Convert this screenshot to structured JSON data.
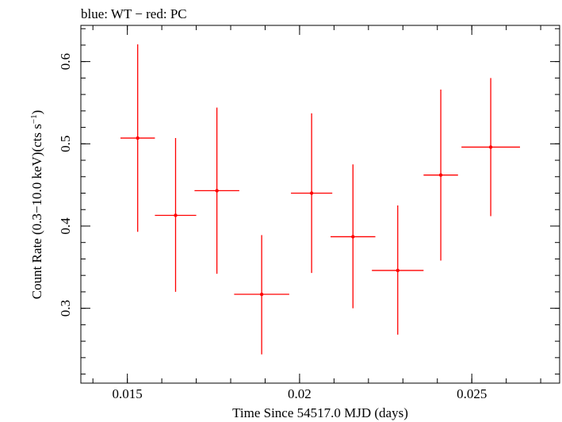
{
  "chart_data": {
    "type": "scatter",
    "title": "blue: WT − red: PC",
    "xlabel": "Time Since 54517.0 MJD (days)",
    "ylabel_main": "Count Rate (0.3−10.0 keV)(cts s",
    "ylabel_sup": "−1",
    "ylabel_end": ")",
    "xlim": [
      0.01365,
      0.02755
    ],
    "ylim": [
      0.209,
      0.644
    ],
    "xticks_major": [
      0.015,
      0.02,
      0.025
    ],
    "xtick_labels": [
      "0.015",
      "0.02",
      "0.025"
    ],
    "xticks_minor_step": 0.001,
    "yticks_major": [
      0.3,
      0.4,
      0.5,
      0.6
    ],
    "ytick_labels": [
      "0.3",
      "0.4",
      "0.5",
      "0.6"
    ],
    "yticks_minor_step": 0.02,
    "grid": false,
    "series": [
      {
        "color": "#ff0000",
        "points": [
          {
            "x": 0.0153,
            "y": 0.507,
            "xerr": 0.0005,
            "ylo": 0.393,
            "yhi": 0.621
          },
          {
            "x": 0.0164,
            "y": 0.413,
            "xerr": 0.0006,
            "ylo": 0.32,
            "yhi": 0.507
          },
          {
            "x": 0.0176,
            "y": 0.443,
            "xerr": 0.00065,
            "ylo": 0.342,
            "yhi": 0.544
          },
          {
            "x": 0.0189,
            "y": 0.317,
            "xerr": 0.0008,
            "ylo": 0.244,
            "yhi": 0.389
          },
          {
            "x": 0.02035,
            "y": 0.44,
            "xerr": 0.0006,
            "ylo": 0.343,
            "yhi": 0.537
          },
          {
            "x": 0.02155,
            "y": 0.387,
            "xerr": 0.00065,
            "ylo": 0.3,
            "yhi": 0.475
          },
          {
            "x": 0.02285,
            "y": 0.346,
            "xerr": 0.00075,
            "ylo": 0.268,
            "yhi": 0.425
          },
          {
            "x": 0.0241,
            "y": 0.462,
            "xerr": 0.0005,
            "ylo": 0.358,
            "yhi": 0.566
          },
          {
            "x": 0.02555,
            "y": 0.496,
            "xerr": 0.00085,
            "ylo": 0.412,
            "yhi": 0.58
          }
        ]
      }
    ]
  }
}
